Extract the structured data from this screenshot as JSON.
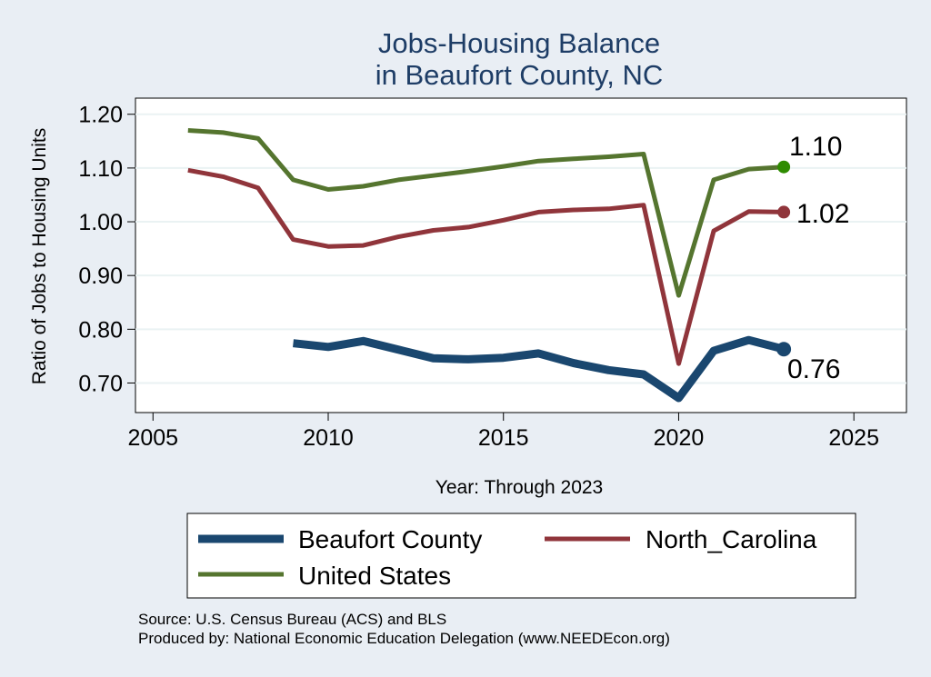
{
  "chart_data": {
    "type": "line",
    "title": [
      "Jobs-Housing Balance",
      "in Beaufort County, NC"
    ],
    "xlabel": "Year: Through 2023",
    "ylabel": "Ratio of Jobs to Housing Units",
    "xlim": [
      2004.5,
      2026.5
    ],
    "ylim": [
      0.645,
      1.23
    ],
    "x_ticks": [
      2005,
      2010,
      2015,
      2020,
      2025
    ],
    "y_ticks": [
      0.7,
      0.8,
      0.9,
      1.0,
      1.1,
      1.2
    ],
    "y_tick_labels": [
      "0.70",
      "0.80",
      "0.90",
      "1.00",
      "1.10",
      "1.20"
    ],
    "grid": true,
    "legend_position": "bottom",
    "series": [
      {
        "name": "Beaufort County",
        "color": "#1a476f",
        "x": [
          2009,
          2010,
          2011,
          2012,
          2013,
          2014,
          2015,
          2016,
          2017,
          2018,
          2019,
          2020,
          2021,
          2022,
          2023
        ],
        "values": [
          0.774,
          0.767,
          0.778,
          0.762,
          0.746,
          0.744,
          0.747,
          0.755,
          0.737,
          0.724,
          0.716,
          0.672,
          0.76,
          0.78,
          0.763
        ],
        "end_label": "0.76"
      },
      {
        "name": "North_Carolina",
        "color": "#90353b",
        "x": [
          2006,
          2007,
          2008,
          2009,
          2010,
          2011,
          2012,
          2013,
          2014,
          2015,
          2016,
          2017,
          2018,
          2019,
          2020,
          2021,
          2022,
          2023
        ],
        "values": [
          1.096,
          1.084,
          1.063,
          0.967,
          0.954,
          0.956,
          0.972,
          0.984,
          0.99,
          1.003,
          1.018,
          1.022,
          1.024,
          1.031,
          0.736,
          0.983,
          1.019,
          1.018
        ],
        "end_label": "1.02"
      },
      {
        "name": "United States",
        "color": "#55752f",
        "x": [
          2006,
          2007,
          2008,
          2009,
          2010,
          2011,
          2012,
          2013,
          2014,
          2015,
          2016,
          2017,
          2018,
          2019,
          2020,
          2021,
          2022,
          2023
        ],
        "values": [
          1.17,
          1.166,
          1.155,
          1.078,
          1.06,
          1.066,
          1.078,
          1.086,
          1.094,
          1.103,
          1.113,
          1.117,
          1.121,
          1.126,
          0.863,
          1.078,
          1.098,
          1.102
        ],
        "end_label": "1.10"
      }
    ],
    "end_marker_colors": [
      "#1a476f",
      "#90353b",
      "#2e8b00"
    ],
    "source_lines": [
      "Source: U.S. Census Bureau (ACS) and BLS",
      "Produced by: National Economic Education Delegation (www.NEEDEcon.org)"
    ]
  }
}
